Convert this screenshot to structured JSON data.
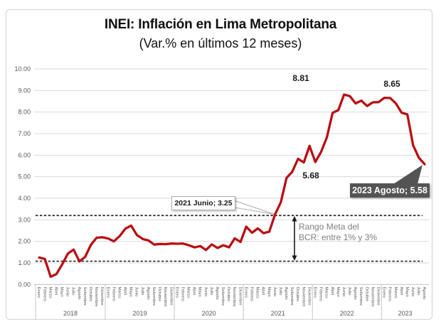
{
  "chart_data": {
    "type": "line",
    "title": "INEI: Inflación en Lima Metropolitana",
    "subtitle": "(Var.% en últimos 12 meses)",
    "xlabel": "",
    "ylabel": "",
    "ylim": [
      0,
      10
    ],
    "grid": true,
    "legend": "none",
    "y_ticks": [
      "0.00",
      "1.00",
      "2.00",
      "3.00",
      "4.00",
      "5.00",
      "6.00",
      "7.00",
      "8.00",
      "9.00",
      "10.00"
    ],
    "month_names": [
      "Enero",
      "Febrero",
      "Marzo",
      "Abril",
      "Mayo",
      "Junio",
      "Julio",
      "Agosto",
      "Setiembre",
      "Octubre",
      "Noviembre",
      "Diciembre"
    ],
    "years": [
      {
        "label": "2018",
        "months": 12
      },
      {
        "label": "2019",
        "months": 12
      },
      {
        "label": "2020",
        "months": 12
      },
      {
        "label": "2021",
        "months": 12
      },
      {
        "label": "2022",
        "months": 12
      },
      {
        "label": "2023",
        "months": 8
      }
    ],
    "series": [
      {
        "name": "Inflación Lima Metropolitana var.% 12 meses",
        "color": "#B90E12",
        "values": [
          1.25,
          1.18,
          0.36,
          0.48,
          0.93,
          1.43,
          1.62,
          1.07,
          1.28,
          1.84,
          2.17,
          2.19,
          2.13,
          2.0,
          2.25,
          2.59,
          2.73,
          2.29,
          2.11,
          2.04,
          1.85,
          1.88,
          1.87,
          1.9,
          1.89,
          1.9,
          1.82,
          1.72,
          1.78,
          1.6,
          1.86,
          1.69,
          1.82,
          1.72,
          2.14,
          1.97,
          2.68,
          2.4,
          2.6,
          2.38,
          2.45,
          3.25,
          3.81,
          4.95,
          5.23,
          5.83,
          5.66,
          6.43,
          5.68,
          6.15,
          6.82,
          7.96,
          8.09,
          8.81,
          8.74,
          8.4,
          8.53,
          8.28,
          8.45,
          8.46,
          8.66,
          8.65,
          8.4,
          7.97,
          7.89,
          6.46,
          5.88,
          5.58
        ]
      }
    ],
    "target_band": {
      "upper": 3.2,
      "lower": 1.08
    },
    "annotations": {
      "jun_2022": "8.81",
      "feb_2023": "8.65",
      "jan_2022": "5.68",
      "callout_2021": "2021 Junio; 3.25",
      "callout_2023": "2023 Agosto; 5.58",
      "band_line1": "Rango Meta del",
      "band_line2": "BCR: entre 1% y 3%"
    },
    "colors": {
      "series": "#B90E12",
      "grid": "#D9D9D9",
      "frame": "#D9D9D9",
      "axis_text": "#595959",
      "dashed_line": "#262626",
      "callout_dark_bg": "#545454",
      "band_text": "#7F7F7F"
    }
  }
}
